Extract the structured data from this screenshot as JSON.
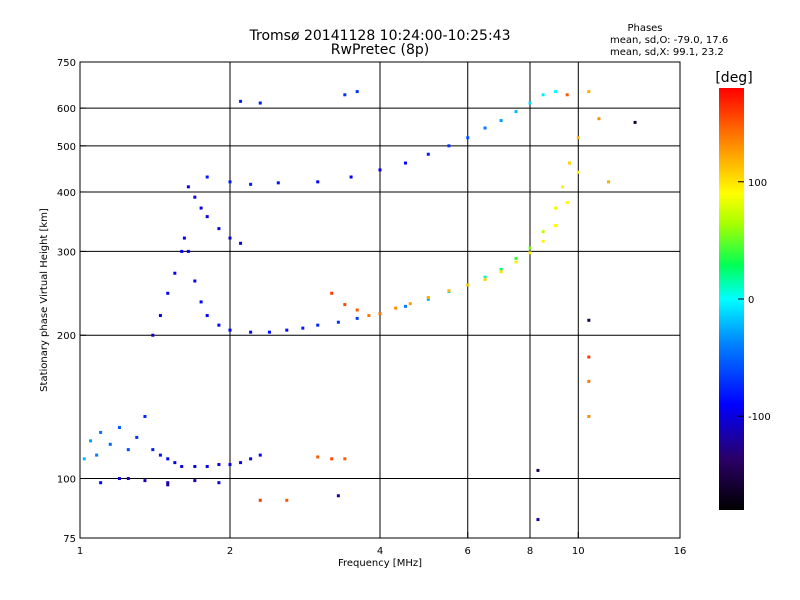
{
  "chart_data": {
    "type": "scatter",
    "title": "Tromsø 20141128 10:24:00-10:25:43",
    "subtitle": "RwPretec (8p)",
    "info": {
      "heading": "Phases",
      "line_o": "mean, sd,O: -79.0, 17.6",
      "line_x": "mean, sd,X:  99.1, 23.2"
    },
    "xlabel": "Frequency [MHz]",
    "ylabel": "Stationary phase Virtual Height [km]",
    "x_scale": "log",
    "y_scale": "log",
    "xlim": [
      1,
      16
    ],
    "ylim": [
      75,
      750
    ],
    "x_ticks": [
      1,
      2,
      4,
      6,
      8,
      10,
      16
    ],
    "y_ticks": [
      75,
      100,
      200,
      300,
      400,
      500,
      600,
      750
    ],
    "grid": true,
    "colorbar": {
      "label": "[deg]",
      "range": [
        -180,
        180
      ],
      "ticks": [
        100,
        0,
        -100
      ]
    },
    "series": [
      {
        "points": [
          [
            1.02,
            110,
            -20
          ],
          [
            1.05,
            120,
            -30
          ],
          [
            1.08,
            112,
            -40
          ],
          [
            1.1,
            125,
            -45
          ],
          [
            1.15,
            118,
            -50
          ],
          [
            1.2,
            128,
            -55
          ],
          [
            1.25,
            115,
            -60
          ],
          [
            1.3,
            122,
            -70
          ],
          [
            1.35,
            135,
            -75
          ],
          [
            1.4,
            115,
            -80
          ],
          [
            1.45,
            112,
            -85
          ],
          [
            1.5,
            110,
            -90
          ],
          [
            1.55,
            108,
            -95
          ],
          [
            1.6,
            106,
            -100
          ],
          [
            1.7,
            106,
            -100
          ],
          [
            1.8,
            106,
            -100
          ],
          [
            1.9,
            107,
            -100
          ],
          [
            2.0,
            107,
            -100
          ],
          [
            2.1,
            108,
            -100
          ],
          [
            2.2,
            110,
            -100
          ],
          [
            2.3,
            112,
            -90
          ],
          [
            1.1,
            98,
            -90
          ],
          [
            1.2,
            100,
            -100
          ],
          [
            1.35,
            99,
            -110
          ],
          [
            1.5,
            98,
            -110
          ],
          [
            1.7,
            99,
            -110
          ],
          [
            1.9,
            98,
            -100
          ]
        ]
      },
      {
        "points": [
          [
            1.4,
            200,
            -110
          ],
          [
            1.45,
            220,
            -100
          ],
          [
            1.5,
            245,
            -95
          ],
          [
            1.55,
            270,
            -90
          ],
          [
            1.6,
            300,
            -90
          ],
          [
            1.62,
            320,
            -95
          ],
          [
            1.65,
            300,
            -90
          ],
          [
            1.7,
            260,
            -90
          ],
          [
            1.75,
            235,
            -90
          ],
          [
            1.8,
            220,
            -90
          ],
          [
            1.9,
            210,
            -90
          ],
          [
            2.0,
            205,
            -90
          ],
          [
            2.2,
            203,
            -90
          ],
          [
            2.4,
            203,
            -85
          ],
          [
            2.6,
            205,
            -85
          ],
          [
            2.8,
            207,
            -80
          ],
          [
            3.0,
            210,
            -75
          ],
          [
            3.3,
            213,
            -70
          ],
          [
            3.6,
            217,
            -65
          ],
          [
            4.0,
            222,
            -55
          ],
          [
            4.5,
            230,
            -40
          ],
          [
            5.0,
            238,
            -25
          ],
          [
            5.5,
            247,
            -15
          ],
          [
            6.0,
            255,
            -5
          ],
          [
            6.5,
            265,
            10
          ],
          [
            7.0,
            275,
            25
          ],
          [
            7.5,
            290,
            40
          ],
          [
            8.0,
            305,
            55
          ],
          [
            8.5,
            330,
            70
          ],
          [
            9.0,
            370,
            85
          ],
          [
            9.3,
            410,
            95
          ],
          [
            9.6,
            460,
            105
          ],
          [
            10.0,
            520,
            115
          ]
        ]
      },
      {
        "points": [
          [
            4.0,
            222,
            140
          ],
          [
            4.3,
            228,
            130
          ],
          [
            4.6,
            233,
            125
          ],
          [
            5.0,
            240,
            120
          ],
          [
            5.5,
            248,
            115
          ],
          [
            6.0,
            255,
            110
          ],
          [
            6.5,
            262,
            105
          ],
          [
            7.0,
            272,
            100
          ],
          [
            7.5,
            285,
            95
          ],
          [
            8.0,
            298,
            95
          ],
          [
            8.5,
            315,
            92
          ],
          [
            9.0,
            340,
            90
          ],
          [
            9.5,
            380,
            90
          ],
          [
            10.0,
            440,
            90
          ]
        ]
      },
      {
        "points": [
          [
            1.65,
            410,
            -100
          ],
          [
            1.7,
            390,
            -100
          ],
          [
            1.75,
            370,
            -100
          ],
          [
            1.8,
            355,
            -100
          ],
          [
            1.9,
            335,
            -100
          ],
          [
            2.0,
            320,
            -100
          ],
          [
            2.1,
            312,
            -100
          ],
          [
            1.8,
            430,
            -80
          ],
          [
            2.0,
            420,
            -80
          ],
          [
            2.2,
            415,
            -80
          ],
          [
            2.5,
            418,
            -85
          ],
          [
            3.0,
            420,
            -90
          ],
          [
            3.5,
            430,
            -95
          ],
          [
            4.0,
            445,
            -95
          ],
          [
            4.5,
            460,
            -90
          ],
          [
            5.0,
            480,
            -80
          ],
          [
            5.5,
            500,
            -70
          ],
          [
            6.0,
            520,
            -55
          ],
          [
            6.5,
            545,
            -40
          ],
          [
            7.0,
            565,
            -30
          ],
          [
            7.5,
            590,
            -20
          ],
          [
            8.0,
            615,
            -10
          ],
          [
            8.5,
            640,
            -5
          ],
          [
            9.0,
            650,
            0
          ]
        ]
      },
      {
        "points": [
          [
            2.1,
            620,
            -80
          ],
          [
            2.3,
            615,
            -80
          ],
          [
            3.4,
            640,
            -70
          ],
          [
            3.6,
            650,
            -70
          ],
          [
            3.0,
            111,
            150
          ],
          [
            3.2,
            110,
            155
          ],
          [
            3.4,
            110,
            150
          ],
          [
            3.2,
            245,
            160
          ],
          [
            3.4,
            232,
            155
          ],
          [
            3.6,
            226,
            150
          ],
          [
            3.8,
            220,
            140
          ],
          [
            9.5,
            640,
            150
          ],
          [
            10.5,
            650,
            120
          ],
          [
            11.0,
            570,
            130
          ],
          [
            11.5,
            420,
            120
          ],
          [
            10.5,
            215,
            -150
          ],
          [
            10.5,
            180,
            160
          ],
          [
            10.5,
            160,
            140
          ],
          [
            10.5,
            135,
            130
          ],
          [
            8.3,
            104,
            -150
          ],
          [
            8.3,
            82,
            -120
          ],
          [
            1.25,
            100,
            -110
          ],
          [
            1.5,
            97,
            -120
          ],
          [
            2.3,
            90,
            160
          ],
          [
            2.6,
            90,
            150
          ],
          [
            3.3,
            92,
            -120
          ],
          [
            13.0,
            560,
            -160
          ]
        ]
      }
    ]
  }
}
